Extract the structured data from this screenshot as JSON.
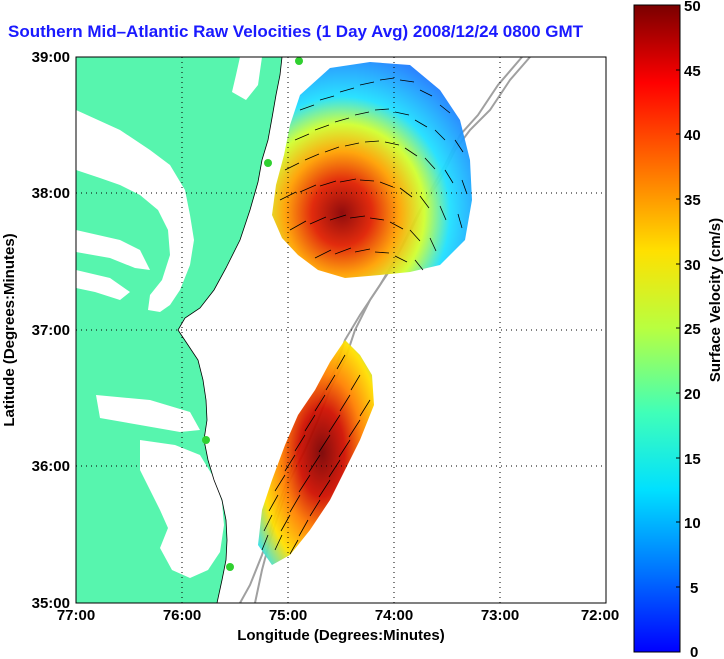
{
  "title": "Southern Mid–Atlantic Raw Velocities (1 Day Avg) 2008/12/24 0800 GMT",
  "xaxis": {
    "label": "Longitude (Degrees:Minutes)",
    "ticks": [
      "77:00",
      "76:00",
      "75:00",
      "74:00",
      "73:00",
      "72:00"
    ]
  },
  "yaxis": {
    "label": "Latitude (Degrees:Minutes)",
    "ticks": [
      "39:00",
      "38:00",
      "37:00",
      "36:00",
      "35:00"
    ]
  },
  "colorbar": {
    "label": "Surface Velocity (cm/s)",
    "ticks": [
      "50",
      "45",
      "40",
      "35",
      "30",
      "25",
      "20",
      "15",
      "10",
      "5",
      "0"
    ],
    "range": [
      0,
      50
    ],
    "colormap": "jet"
  },
  "map": {
    "lon_range": [
      -77,
      -72
    ],
    "lat_range": [
      35,
      39
    ],
    "land_color": "#57f5ae",
    "grid": "dotted"
  }
}
